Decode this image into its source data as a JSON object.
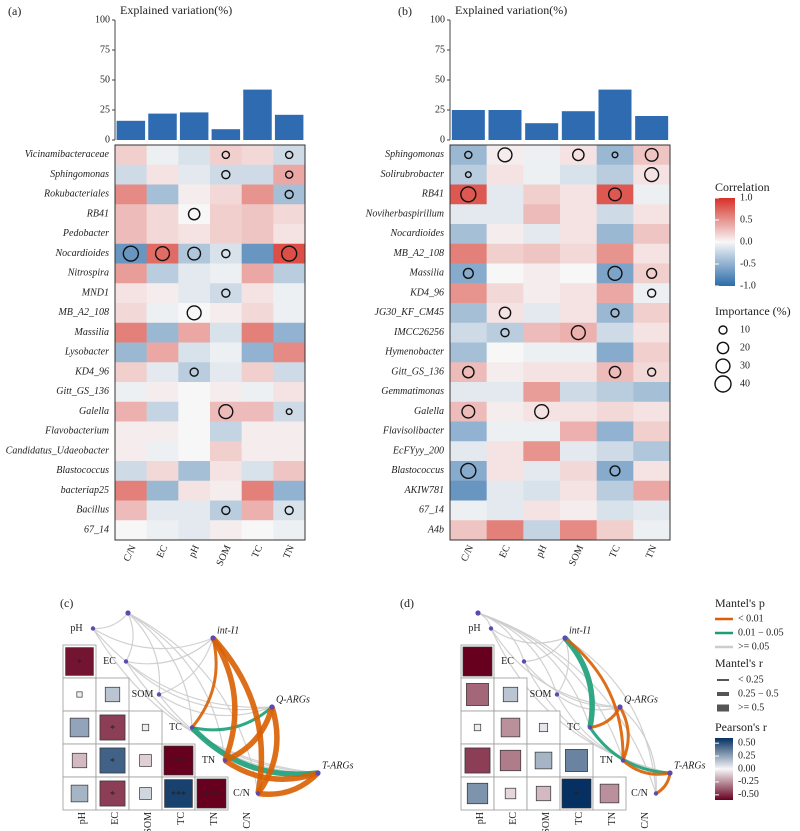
{
  "chart_data": [
    {
      "type": "heatmap",
      "panel": "(a)",
      "title": "Explained variation(%)",
      "categories": [
        "C/N",
        "EC",
        "pH",
        "SOM",
        "TC",
        "TN"
      ],
      "bar_values": [
        16,
        22,
        23,
        9,
        42,
        21
      ],
      "bar_color": "#2e6bb0",
      "ylim": [
        0,
        100
      ],
      "yticks": [
        0,
        25,
        50,
        75,
        100
      ],
      "rows": [
        "Vicinamibacteraceae",
        "Sphingomonas",
        "Rokubacteriales",
        "RB41",
        "Pedobacter",
        "Nocardioides",
        "Nitrospira",
        "MND1",
        "MB_A2_108",
        "Massilia",
        "Lysobacter",
        "KD4_96",
        "Gitt_GS_136",
        "Galella",
        "Flavobacterium",
        "Candidatus_Udaeobacter",
        "Blastococcus",
        "bacteriap25",
        "Bacillus",
        "67_14"
      ],
      "values": [
        [
          0.2,
          -0.05,
          -0.15,
          0.2,
          0.15,
          -0.2
        ],
        [
          -0.2,
          0.1,
          -0.1,
          -0.2,
          -0.2,
          0.4
        ],
        [
          0.55,
          -0.4,
          0.05,
          0.15,
          0.5,
          -0.4
        ],
        [
          0.3,
          0.15,
          0.0,
          0.2,
          0.25,
          0.15
        ],
        [
          0.3,
          0.15,
          0.1,
          0.2,
          0.25,
          0.1
        ],
        [
          -0.7,
          0.7,
          -0.35,
          -0.15,
          -0.7,
          0.85
        ],
        [
          0.45,
          -0.3,
          -0.1,
          -0.05,
          0.4,
          -0.3
        ],
        [
          0.1,
          0.05,
          -0.1,
          -0.2,
          0.1,
          -0.05
        ],
        [
          0.15,
          -0.05,
          0.0,
          0.05,
          0.15,
          -0.05
        ],
        [
          0.6,
          -0.45,
          0.4,
          -0.15,
          0.6,
          -0.5
        ],
        [
          -0.45,
          0.4,
          -0.15,
          -0.05,
          -0.5,
          0.55
        ],
        [
          0.2,
          -0.1,
          -0.3,
          -0.1,
          0.2,
          -0.2
        ],
        [
          -0.05,
          0.05,
          0.0,
          0.05,
          -0.05,
          0.1
        ],
        [
          0.35,
          -0.25,
          0.0,
          0.3,
          0.3,
          -0.2
        ],
        [
          0.05,
          0.05,
          0.0,
          -0.25,
          0.05,
          0.05
        ],
        [
          0.05,
          -0.05,
          0.0,
          0.2,
          0.05,
          0.05
        ],
        [
          -0.2,
          0.15,
          -0.4,
          0.1,
          -0.15,
          0.25
        ],
        [
          0.6,
          -0.45,
          0.1,
          0.05,
          0.6,
          -0.5
        ],
        [
          0.3,
          -0.1,
          -0.1,
          -0.3,
          0.35,
          -0.15
        ],
        [
          0.0,
          -0.05,
          -0.1,
          0.05,
          0.0,
          -0.05
        ]
      ],
      "importance": [
        [
          null,
          null,
          null,
          8,
          null,
          8
        ],
        [
          null,
          null,
          null,
          10,
          null,
          8
        ],
        [
          null,
          null,
          null,
          null,
          null,
          10
        ],
        [
          null,
          null,
          20,
          null,
          null,
          null
        ],
        [
          null,
          null,
          null,
          null,
          null,
          null
        ],
        [
          35,
          30,
          25,
          10,
          null,
          35
        ],
        [
          null,
          null,
          null,
          null,
          null,
          null
        ],
        [
          null,
          null,
          null,
          10,
          null,
          null
        ],
        [
          null,
          null,
          30,
          null,
          null,
          null
        ],
        [
          null,
          null,
          null,
          null,
          null,
          null
        ],
        [
          null,
          null,
          null,
          null,
          null,
          null
        ],
        [
          null,
          null,
          10,
          null,
          null,
          null
        ],
        [
          null,
          null,
          null,
          null,
          null,
          null
        ],
        [
          null,
          null,
          null,
          30,
          null,
          5
        ],
        [
          null,
          null,
          null,
          null,
          null,
          null
        ],
        [
          null,
          null,
          null,
          null,
          null,
          null
        ],
        [
          null,
          null,
          null,
          null,
          null,
          null
        ],
        [
          null,
          null,
          null,
          null,
          null,
          null
        ],
        [
          null,
          null,
          null,
          10,
          null,
          10
        ],
        [
          null,
          null,
          null,
          null,
          null,
          null
        ]
      ]
    },
    {
      "type": "heatmap",
      "panel": "(b)",
      "title": "Explained variation(%)",
      "categories": [
        "C/N",
        "EC",
        "pH",
        "SOM",
        "TC",
        "TN"
      ],
      "bar_values": [
        25,
        25,
        14,
        24,
        42,
        20
      ],
      "bar_color": "#2e6bb0",
      "ylim": [
        0,
        100
      ],
      "yticks": [
        0,
        25,
        50,
        75,
        100
      ],
      "rows": [
        "Sphingomonas",
        "Solirubrobacter",
        "RB41",
        "Noviherbaspirillum",
        "Nocardioides",
        "MB_A2_108",
        "Massilia",
        "KD4_96",
        "JG30_KF_CM45",
        "IMCC26256",
        "Hymenobacter",
        "Gitt_GS_136",
        "Gemmatimonas",
        "Galella",
        "Flavisolibacter",
        "EcFYyy_200",
        "Blastococcus",
        "AKIW781",
        "67_14",
        "A4b"
      ],
      "values": [
        [
          -0.45,
          0.05,
          -0.05,
          0.1,
          -0.45,
          0.25
        ],
        [
          -0.3,
          0.1,
          -0.05,
          -0.15,
          -0.3,
          0.1
        ],
        [
          0.8,
          -0.1,
          0.2,
          0.1,
          0.8,
          -0.05
        ],
        [
          -0.1,
          -0.1,
          0.3,
          0.1,
          -0.2,
          0.1
        ],
        [
          -0.4,
          0.05,
          -0.1,
          0.1,
          -0.45,
          0.25
        ],
        [
          0.6,
          0.2,
          0.25,
          0.15,
          0.5,
          0.1
        ],
        [
          -0.55,
          0.0,
          0.05,
          0.0,
          -0.6,
          0.2
        ],
        [
          0.5,
          0.15,
          0.05,
          0.1,
          0.4,
          -0.05
        ],
        [
          -0.4,
          0.1,
          -0.1,
          0.1,
          -0.45,
          0.2
        ],
        [
          -0.2,
          -0.3,
          0.3,
          0.35,
          -0.2,
          0.1
        ],
        [
          -0.4,
          0.0,
          -0.05,
          -0.05,
          -0.55,
          0.2
        ],
        [
          0.3,
          0.05,
          0.1,
          0.1,
          0.3,
          0.15
        ],
        [
          -0.1,
          -0.1,
          0.45,
          -0.2,
          -0.3,
          -0.4
        ],
        [
          0.3,
          0.05,
          0.1,
          0.1,
          0.15,
          0.1
        ],
        [
          -0.5,
          -0.05,
          -0.05,
          0.35,
          -0.5,
          0.2
        ],
        [
          -0.1,
          0.1,
          0.5,
          -0.1,
          -0.2,
          -0.35
        ],
        [
          -0.55,
          0.1,
          -0.1,
          0.15,
          -0.55,
          0.1
        ],
        [
          -0.7,
          -0.1,
          -0.15,
          0.1,
          -0.3,
          0.4
        ],
        [
          -0.05,
          -0.1,
          0.1,
          0.05,
          -0.15,
          -0.1
        ],
        [
          0.25,
          0.6,
          -0.25,
          0.55,
          0.2,
          -0.05
        ]
      ],
      "importance": [
        [
          8,
          30,
          null,
          20,
          5,
          25
        ],
        [
          5,
          null,
          null,
          null,
          null,
          30
        ],
        [
          35,
          null,
          null,
          null,
          25,
          null
        ],
        [
          null,
          null,
          null,
          null,
          null,
          null
        ],
        [
          null,
          null,
          null,
          null,
          null,
          null
        ],
        [
          null,
          null,
          null,
          null,
          null,
          null
        ],
        [
          15,
          null,
          null,
          null,
          30,
          15
        ],
        [
          null,
          null,
          null,
          null,
          null,
          10
        ],
        [
          null,
          20,
          null,
          null,
          10,
          null
        ],
        [
          null,
          10,
          null,
          30,
          null,
          null
        ],
        [
          null,
          null,
          null,
          null,
          null,
          null
        ],
        [
          20,
          null,
          null,
          null,
          20,
          10
        ],
        [
          null,
          null,
          null,
          null,
          null,
          null
        ],
        [
          25,
          null,
          30,
          null,
          null,
          null
        ],
        [
          null,
          null,
          null,
          null,
          null,
          null
        ],
        [
          null,
          null,
          null,
          null,
          null,
          null
        ],
        [
          35,
          null,
          null,
          null,
          15,
          null
        ],
        [
          null,
          null,
          null,
          null,
          null,
          null
        ],
        [
          null,
          null,
          null,
          null,
          null,
          null
        ],
        [
          null,
          null,
          null,
          null,
          null,
          null
        ]
      ],
      "legend_title": "Correlation",
      "clim": [
        -1,
        1
      ],
      "colormap": [
        "#2b6ca8",
        "#f7f7f7",
        "#d73027"
      ],
      "legend_ticks": [
        {
          "value": 1,
          "label": "1.0"
        },
        0.5,
        {
          "value": 0,
          "label": "0.0"
        },
        -0.5,
        {
          "value": -1,
          "label": "-1.0"
        }
      ],
      "size_title": "Importance (%)",
      "sizes": [
        10,
        20,
        30,
        40
      ]
    },
    {
      "type": "mantel",
      "panel": "(c)",
      "variables": [
        "pH",
        "EC",
        "SOM",
        "TC",
        "TN",
        "C/N"
      ],
      "sources": [
        null,
        "int-I1",
        "Q-ARGs",
        "T-ARGs"
      ],
      "r": [
        [
          -0.55
        ],
        [
          0.02,
          0.15
        ],
        [
          0.25,
          -0.45,
          0.03
        ],
        [
          -0.15,
          0.45,
          -0.1,
          -0.6
        ],
        [
          0.2,
          -0.45,
          0.1,
          0.55,
          -0.6
        ]
      ],
      "stars": [
        [
          "*"
        ],
        [
          null,
          null
        ],
        [
          null,
          "*",
          null
        ],
        [
          null,
          "*",
          null,
          "***"
        ],
        [
          null,
          "*",
          null,
          "***",
          "***"
        ]
      ],
      "mantel_p": [
        [
          2,
          2,
          2,
          2,
          2,
          2
        ],
        [
          2,
          2,
          2,
          0,
          0,
          0
        ],
        [
          2,
          2,
          2,
          1,
          0,
          0
        ],
        [
          2,
          2,
          2,
          1,
          0,
          0
        ]
      ],
      "mantel_r": [
        [
          0,
          0,
          0,
          0,
          0,
          0
        ],
        [
          0,
          0,
          0,
          1,
          2,
          2
        ],
        [
          0,
          0,
          0,
          1,
          2,
          2
        ],
        [
          0,
          0,
          0,
          2,
          2,
          2
        ]
      ]
    },
    {
      "type": "mantel",
      "panel": "(d)",
      "variables": [
        "pH",
        "EC",
        "SOM",
        "TC",
        "TN",
        "C/N"
      ],
      "sources": [
        null,
        "int-I1",
        "Q-ARGs",
        "T-ARGs"
      ],
      "r": [
        [
          -0.6
        ],
        [
          -0.35,
          0.15
        ],
        [
          0.03,
          -0.25,
          0.05
        ],
        [
          -0.45,
          -0.3,
          0.2,
          0.35
        ],
        [
          0.3,
          -0.08,
          -0.15,
          0.6,
          -0.25
        ]
      ],
      "stars": [
        [
          null
        ],
        [
          null,
          null
        ],
        [
          null,
          null,
          null
        ],
        [
          null,
          null,
          null,
          null
        ],
        [
          null,
          null,
          null,
          "*",
          null
        ]
      ],
      "mantel_p": [
        [
          2,
          2,
          2,
          2,
          2,
          2
        ],
        [
          2,
          2,
          2,
          1,
          0,
          2
        ],
        [
          2,
          2,
          2,
          0,
          0,
          2
        ],
        [
          2,
          2,
          2,
          1,
          0,
          0
        ]
      ],
      "mantel_r": [
        [
          0,
          0,
          0,
          0,
          0,
          0
        ],
        [
          0,
          0,
          0,
          2,
          1,
          0
        ],
        [
          0,
          0,
          0,
          1,
          1,
          0
        ],
        [
          0,
          0,
          0,
          1,
          1,
          1
        ]
      ],
      "p_title": "Mantel's p",
      "p_labels": [
        "< 0.01",
        "0.01 − 0.05",
        ">= 0.05"
      ],
      "p_colors": [
        "#d95f02",
        "#1b9e77",
        "#cccccc"
      ],
      "r_title": "Mantel's r",
      "r_labels": [
        "< 0.25",
        "0.25 − 0.5",
        ">= 0.5"
      ],
      "pearson_title": "Pearson's r",
      "pearson_lim": [
        -0.6,
        0.6
      ],
      "pearson_colormap": [
        "#67001f",
        "#f7f7f7",
        "#053061"
      ],
      "pearson_ticks": [
        {
          "value": 0.5,
          "label": "0.50"
        },
        0.25,
        {
          "value": 0,
          "label": "0.00"
        },
        -0.25,
        {
          "value": -0.5,
          "label": "-0.50"
        }
      ]
    }
  ]
}
